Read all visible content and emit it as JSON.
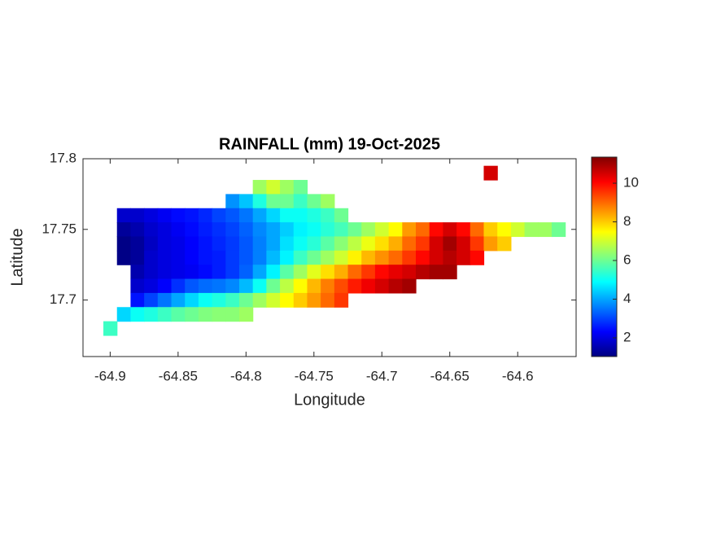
{
  "chart_data": {
    "type": "heatmap",
    "title": "RAINFALL (mm) 19-Oct-2025",
    "xlabel": "Longitude",
    "ylabel": "Latitude",
    "colormap": "jet",
    "xlim": [
      -64.92,
      -64.557
    ],
    "ylim": [
      17.66,
      17.8
    ],
    "xticks": [
      -64.9,
      -64.85,
      -64.8,
      -64.75,
      -64.7,
      -64.65,
      -64.6
    ],
    "yticks": [
      17.7,
      17.75,
      17.8
    ],
    "clim": [
      1.03,
      11.35
    ],
    "cticks": [
      2,
      4,
      6,
      8,
      10
    ],
    "x": [
      -64.9,
      -64.89,
      -64.88,
      -64.87,
      -64.86,
      -64.85,
      -64.84,
      -64.83,
      -64.82,
      -64.81,
      -64.8,
      -64.79,
      -64.78,
      -64.77,
      -64.76,
      -64.75,
      -64.74,
      -64.73,
      -64.72,
      -64.71,
      -64.7,
      -64.69,
      -64.68,
      -64.67,
      -64.66,
      -64.65,
      -64.64,
      -64.63,
      -64.62,
      -64.61,
      -64.6,
      -64.59,
      -64.58,
      -64.57,
      -64.56
    ],
    "y": [
      17.79,
      17.78,
      17.77,
      17.76,
      17.75,
      17.74,
      17.73,
      17.72,
      17.71,
      17.7,
      17.69,
      17.68
    ],
    "values": [
      [
        null,
        null,
        null,
        null,
        null,
        null,
        null,
        null,
        null,
        null,
        null,
        null,
        null,
        null,
        null,
        null,
        null,
        null,
        null,
        null,
        null,
        null,
        null,
        null,
        null,
        null,
        null,
        null,
        10.5,
        null,
        null,
        null,
        null,
        null,
        null
      ],
      [
        null,
        null,
        null,
        null,
        null,
        null,
        null,
        null,
        null,
        null,
        null,
        6.5,
        7,
        6.5,
        6,
        null,
        null,
        null,
        null,
        null,
        null,
        null,
        null,
        null,
        null,
        null,
        null,
        null,
        null,
        null,
        null,
        null,
        null,
        null,
        null
      ],
      [
        null,
        null,
        null,
        null,
        null,
        null,
        null,
        null,
        null,
        3.8,
        4.3,
        5.2,
        6,
        6,
        5.5,
        6,
        6.5,
        null,
        null,
        null,
        null,
        null,
        null,
        null,
        null,
        null,
        null,
        null,
        null,
        null,
        null,
        null,
        null,
        null,
        null
      ],
      [
        null,
        1.8,
        1.8,
        2,
        2.2,
        2.4,
        2.5,
        2.7,
        3,
        3.2,
        3.5,
        4,
        4.5,
        5,
        5,
        5.2,
        5.5,
        6,
        null,
        null,
        null,
        null,
        null,
        null,
        null,
        null,
        null,
        null,
        null,
        null,
        null,
        null,
        null,
        null,
        null
      ],
      [
        null,
        1.3,
        1.5,
        1.8,
        2,
        2.2,
        2.4,
        2.6,
        2.8,
        3,
        3.3,
        3.7,
        4,
        4.4,
        4.8,
        5,
        5.3,
        5.6,
        6,
        6.5,
        7,
        7.5,
        8.5,
        9,
        10,
        10.5,
        10,
        9,
        8,
        7.5,
        7,
        6.5,
        6.5,
        6,
        null
      ],
      [
        null,
        1.1,
        1.3,
        1.7,
        2,
        2.1,
        2.3,
        2.5,
        2.7,
        2.9,
        3.2,
        3.6,
        4,
        4.6,
        5,
        5.3,
        5.8,
        6.3,
        6.8,
        7.3,
        7.8,
        8.3,
        9,
        9.5,
        10.5,
        11,
        10.5,
        9.5,
        8.5,
        8,
        null,
        null,
        null,
        null,
        null
      ],
      [
        null,
        1.1,
        1.3,
        1.8,
        2,
        2.1,
        2.3,
        2.5,
        2.6,
        2.9,
        3.2,
        3.6,
        4.2,
        4.8,
        5.5,
        6,
        6.5,
        7,
        7.6,
        8.2,
        8.6,
        9,
        9.5,
        10,
        10.5,
        10.8,
        10.5,
        10,
        null,
        null,
        null,
        null,
        null,
        null,
        null
      ],
      [
        null,
        null,
        1.5,
        1.8,
        2,
        2.1,
        2.2,
        2.4,
        2.6,
        2.9,
        3.3,
        4,
        4.8,
        5.8,
        6.5,
        7.2,
        7.8,
        8.3,
        9,
        9.5,
        10,
        10.3,
        10.5,
        10.8,
        11,
        11,
        null,
        null,
        null,
        null,
        null,
        null,
        null,
        null,
        null
      ],
      [
        null,
        null,
        1.8,
        2,
        2.3,
        2.8,
        3.2,
        3.4,
        3.5,
        3.7,
        4.2,
        5,
        6,
        6.8,
        7.5,
        8.2,
        8.8,
        9.3,
        9.8,
        10.2,
        10.5,
        10.8,
        11,
        null,
        null,
        null,
        null,
        null,
        null,
        null,
        null,
        null,
        null,
        null,
        null
      ],
      [
        null,
        null,
        2.5,
        3,
        3.5,
        4,
        4.5,
        5,
        5.2,
        5.5,
        6,
        6.5,
        7,
        7.5,
        8,
        8.5,
        9,
        9.5,
        null,
        null,
        null,
        null,
        null,
        null,
        null,
        null,
        null,
        null,
        null,
        null,
        null,
        null,
        null,
        null,
        null
      ],
      [
        null,
        4.5,
        5,
        5.2,
        5.5,
        5.8,
        6,
        6.2,
        6.3,
        6.3,
        6.5,
        null,
        null,
        null,
        null,
        null,
        null,
        null,
        null,
        null,
        null,
        null,
        null,
        null,
        null,
        null,
        null,
        null,
        null,
        null,
        null,
        null,
        null,
        null,
        null
      ],
      [
        5.5,
        null,
        null,
        null,
        null,
        null,
        null,
        null,
        null,
        null,
        null,
        null,
        null,
        null,
        null,
        null,
        null,
        null,
        null,
        null,
        null,
        null,
        null,
        null,
        null,
        null,
        null,
        null,
        null,
        null,
        null,
        null,
        null,
        null,
        null
      ]
    ]
  }
}
